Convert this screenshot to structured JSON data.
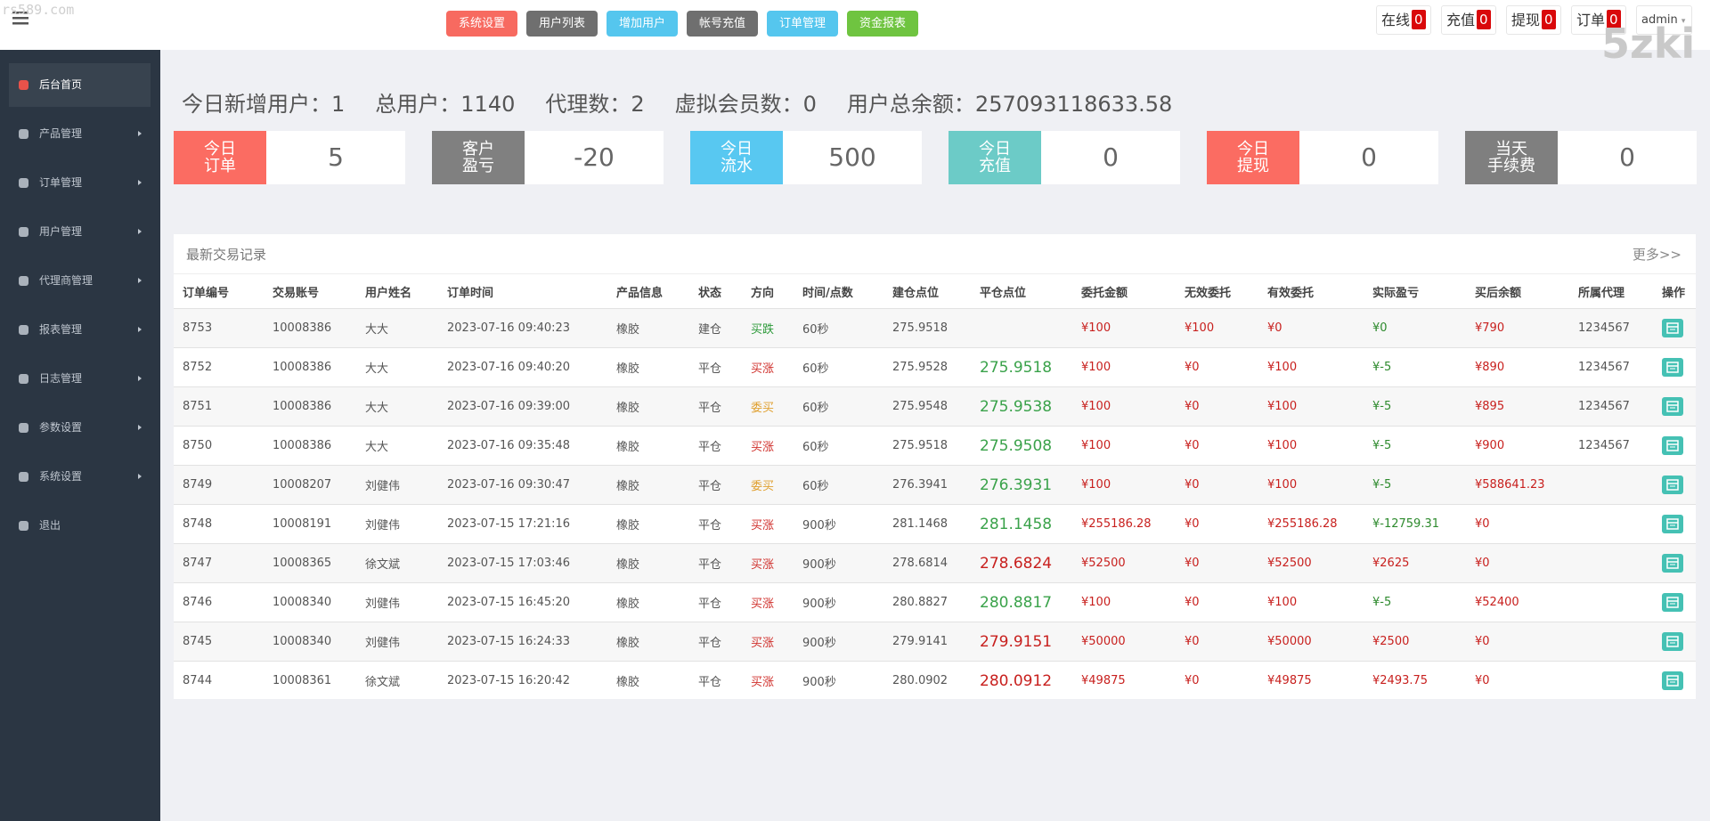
{
  "watermark": {
    "left": "rs589.com",
    "right": "5zki"
  },
  "header": {
    "buttons": [
      {
        "label": "系统设置",
        "color": "#f76a60"
      },
      {
        "label": "用户列表",
        "color": "#6f6f6f"
      },
      {
        "label": "增加用户",
        "color": "#55c6ee"
      },
      {
        "label": "帐号充值",
        "color": "#6f6f6f"
      },
      {
        "label": "订单管理",
        "color": "#55c6ee"
      },
      {
        "label": "资金报表",
        "color": "#6fc440"
      }
    ],
    "badges": [
      {
        "label": "在线",
        "count": "0"
      },
      {
        "label": "充值",
        "count": "0"
      },
      {
        "label": "提现",
        "count": "0"
      },
      {
        "label": "订单",
        "count": "0"
      }
    ],
    "user": "admin"
  },
  "sidebar": {
    "items": [
      "后台首页",
      "产品管理",
      "订单管理",
      "用户管理",
      "代理商管理",
      "报表管理",
      "日志管理",
      "参数设置",
      "系统设置",
      "退出"
    ],
    "active": 0,
    "with_arrow": [
      false,
      true,
      true,
      true,
      true,
      true,
      true,
      true,
      true,
      false
    ]
  },
  "stats": [
    {
      "label": "今日新增用户：",
      "value": "1"
    },
    {
      "label": "总用户：",
      "value": "1140"
    },
    {
      "label": "代理数：",
      "value": "2"
    },
    {
      "label": "虚拟会员数：",
      "value": "0"
    },
    {
      "label": "用户总余额：",
      "value": "257093118633.58"
    }
  ],
  "cards": [
    {
      "label": [
        "今日",
        "订单"
      ],
      "value": "5",
      "color": "#fb6c62"
    },
    {
      "label": [
        "客户",
        "盈亏"
      ],
      "value": "-20",
      "color": "#808080"
    },
    {
      "label": [
        "今日",
        "流水"
      ],
      "value": "500",
      "color": "#58c8f1"
    },
    {
      "label": [
        "今日",
        "充值"
      ],
      "value": "0",
      "color": "#6ccbc7"
    },
    {
      "label": [
        "今日",
        "提现"
      ],
      "value": "0",
      "color": "#fb6c62"
    },
    {
      "label": [
        "当天",
        "手续费"
      ],
      "value": "0",
      "color": "#7f7f7f"
    }
  ],
  "table": {
    "title": "最新交易记录",
    "more": "更多>>",
    "columns": [
      "订单编号",
      "交易账号",
      "用户姓名",
      "订单时间",
      "产品信息",
      "状态",
      "方向",
      "时间/点数",
      "建仓点位",
      "平仓点位",
      "委托金额",
      "无效委托",
      "有效委托",
      "实际盈亏",
      "买后余额",
      "所属代理",
      "操作"
    ],
    "rows": [
      {
        "cells": [
          "8753",
          "10008386",
          "大大",
          "2023-07-16 09:40:23",
          "橡胶",
          "建仓",
          "买跌",
          "60秒",
          "275.9518",
          null,
          "¥100",
          "¥100",
          "¥0",
          "¥0",
          "¥790",
          "1234567"
        ],
        "colors": {
          "direction": "#2d9a3a",
          "close": "#3aa24a",
          "pnl": "#2d8a2d"
        }
      },
      {
        "cells": [
          "8752",
          "10008386",
          "大大",
          "2023-07-16 09:40:20",
          "橡胶",
          "平仓",
          "买涨",
          "60秒",
          "275.9528",
          "275.9518",
          "¥100",
          "¥0",
          "¥100",
          "¥-5",
          "¥890",
          "1234567"
        ],
        "colors": {
          "direction": "#d0312d",
          "close": "#3aa24a",
          "pnl": "#2d8a2d"
        }
      },
      {
        "cells": [
          "8751",
          "10008386",
          "大大",
          "2023-07-16 09:39:00",
          "橡胶",
          "平仓",
          "委买",
          "60秒",
          "275.9548",
          "275.9538",
          "¥100",
          "¥0",
          "¥100",
          "¥-5",
          "¥895",
          "1234567"
        ],
        "colors": {
          "direction": "#e0a030",
          "close": "#3aa24a",
          "pnl": "#2d8a2d"
        }
      },
      {
        "cells": [
          "8750",
          "10008386",
          "大大",
          "2023-07-16 09:35:48",
          "橡胶",
          "平仓",
          "买涨",
          "60秒",
          "275.9518",
          "275.9508",
          "¥100",
          "¥0",
          "¥100",
          "¥-5",
          "¥900",
          "1234567"
        ],
        "colors": {
          "direction": "#d0312d",
          "close": "#3aa24a",
          "pnl": "#2d8a2d"
        }
      },
      {
        "cells": [
          "8749",
          "10008207",
          "刘健伟",
          "2023-07-16 09:30:47",
          "橡胶",
          "平仓",
          "委买",
          "60秒",
          "276.3941",
          "276.3931",
          "¥100",
          "¥0",
          "¥100",
          "¥-5",
          "¥588641.23",
          null
        ],
        "colors": {
          "direction": "#e0a030",
          "close": "#3aa24a",
          "pnl": "#2d8a2d"
        }
      },
      {
        "cells": [
          "8748",
          "10008191",
          "刘健伟",
          "2023-07-15 17:21:16",
          "橡胶",
          "平仓",
          "买涨",
          "900秒",
          "281.1468",
          "281.1458",
          "¥255186.28",
          "¥0",
          "¥255186.28",
          "¥-12759.31",
          "¥0",
          null
        ],
        "colors": {
          "direction": "#d0312d",
          "close": "#3aa24a",
          "pnl": "#2d8a2d"
        }
      },
      {
        "cells": [
          "8747",
          "10008365",
          "徐文斌",
          "2023-07-15 17:03:46",
          "橡胶",
          "平仓",
          "买涨",
          "900秒",
          "278.6814",
          "278.6824",
          "¥52500",
          "¥0",
          "¥52500",
          "¥2625",
          "¥0",
          null
        ],
        "colors": {
          "direction": "#d0312d",
          "close": "#c8201e",
          "pnl": "#c8201e"
        }
      },
      {
        "cells": [
          "8746",
          "10008340",
          "刘健伟",
          "2023-07-15 16:45:20",
          "橡胶",
          "平仓",
          "买涨",
          "900秒",
          "280.8827",
          "280.8817",
          "¥100",
          "¥0",
          "¥100",
          "¥-5",
          "¥52400",
          null
        ],
        "colors": {
          "direction": "#d0312d",
          "close": "#3aa24a",
          "pnl": "#2d8a2d"
        }
      },
      {
        "cells": [
          "8745",
          "10008340",
          "刘健伟",
          "2023-07-15 16:24:33",
          "橡胶",
          "平仓",
          "买涨",
          "900秒",
          "279.9141",
          "279.9151",
          "¥50000",
          "¥0",
          "¥50000",
          "¥2500",
          "¥0",
          null
        ],
        "colors": {
          "direction": "#d0312d",
          "close": "#c8201e",
          "pnl": "#c8201e"
        }
      },
      {
        "cells": [
          "8744",
          "10008361",
          "徐文斌",
          "2023-07-15 16:20:42",
          "橡胶",
          "平仓",
          "买涨",
          "900秒",
          "280.0902",
          "280.0912",
          "¥49875",
          "¥0",
          "¥49875",
          "¥2493.75",
          "¥0",
          null
        ],
        "colors": {
          "direction": "#d0312d",
          "close": "#c8201e",
          "pnl": "#c8201e"
        }
      }
    ]
  }
}
